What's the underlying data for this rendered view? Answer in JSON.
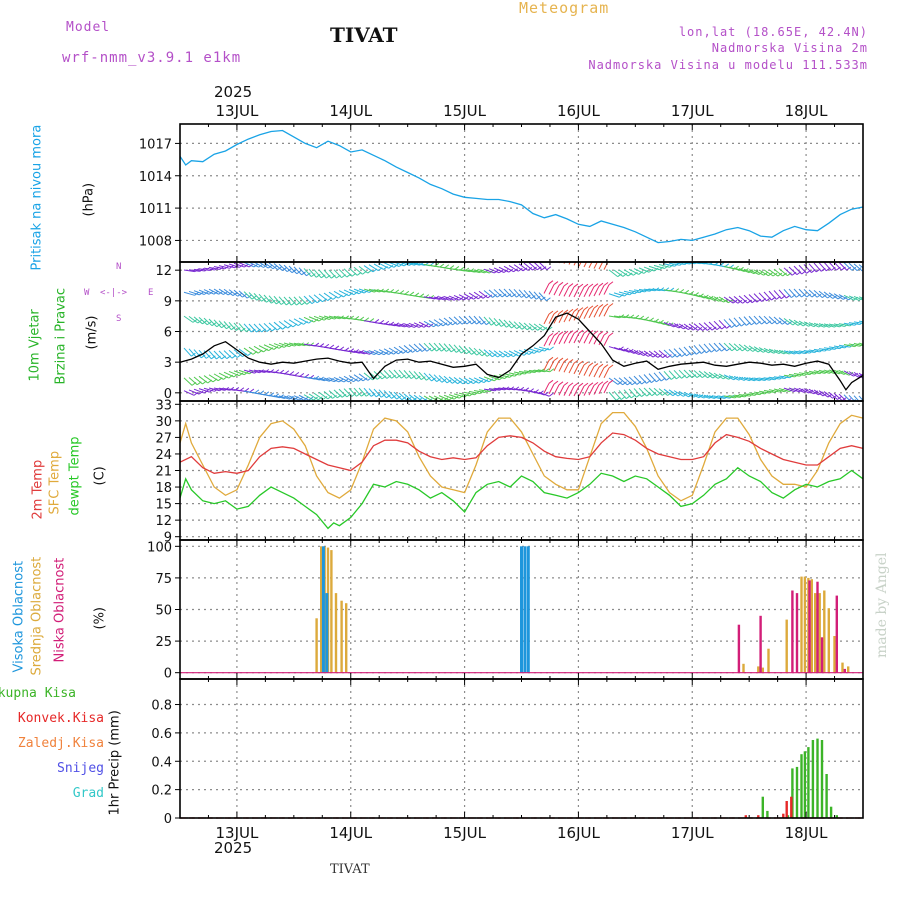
{
  "header": {
    "model_label": "Model",
    "model_name": "wrf-nmm_v3.9.1 e1km",
    "title": "TIVAT",
    "meteogram": "Meteogram",
    "lonlat": "lon,lat (18.65E, 42.4N)",
    "elevation": "Nadmorska Visina 2m",
    "model_elevation": "Nadmorska Visina u modelu 111.533m",
    "year": "2025",
    "footer_station": "TIVAT",
    "watermark": "made by Angel"
  },
  "colors": {
    "pressure": "#19a3e6",
    "wind_speed": "#000000",
    "temp2m": "#e03c3c",
    "sfc_temp": "#e0aa3c",
    "dewpt": "#28c828",
    "high_cloud": "#1e96dc",
    "mid_cloud": "#dcaa3c",
    "low_cloud": "#d21e78",
    "total_precip": "#3cb428",
    "conv_precip": "#e62828",
    "frozen_precip": "#f0823c",
    "snow": "#5050e6",
    "hail": "#32c8c8",
    "magenta_text": "#b450c8",
    "orange_text": "#e6b450"
  },
  "chart_data": [
    {
      "type": "line",
      "panel": "pressure",
      "ylabel": "Pritisak na nivou mora",
      "unit": "(hPa)",
      "ylim": [
        1006,
        1018.8
      ],
      "yticks": [
        1008,
        1011,
        1014,
        1017
      ],
      "x_day_start": 12.5,
      "x_day_end": 18.5,
      "x_ticks": [
        "13JUL",
        "14JUL",
        "15JUL",
        "16JUL",
        "17JUL",
        "18JUL"
      ],
      "series": [
        {
          "color_key": "pressure",
          "x": [
            12.5,
            12.55,
            12.6,
            12.7,
            12.8,
            12.9,
            13.0,
            13.1,
            13.2,
            13.3,
            13.4,
            13.5,
            13.6,
            13.7,
            13.8,
            13.9,
            14.0,
            14.1,
            14.2,
            14.3,
            14.4,
            14.5,
            14.6,
            14.7,
            14.8,
            14.9,
            15.0,
            15.1,
            15.2,
            15.3,
            15.4,
            15.5,
            15.6,
            15.7,
            15.8,
            15.9,
            16.0,
            16.1,
            16.2,
            16.3,
            16.4,
            16.5,
            16.6,
            16.7,
            16.8,
            16.9,
            17.0,
            17.1,
            17.2,
            17.3,
            17.4,
            17.5,
            17.6,
            17.7,
            17.8,
            17.9,
            18.0,
            18.1,
            18.2,
            18.3,
            18.4,
            18.5
          ],
          "values": [
            1015.8,
            1015.0,
            1015.4,
            1015.3,
            1016.0,
            1016.3,
            1016.9,
            1017.4,
            1017.8,
            1018.1,
            1018.2,
            1017.6,
            1017.0,
            1016.6,
            1017.2,
            1016.8,
            1016.2,
            1016.4,
            1015.9,
            1015.4,
            1014.8,
            1014.3,
            1013.8,
            1013.2,
            1012.8,
            1012.3,
            1012.0,
            1011.9,
            1011.8,
            1011.8,
            1011.6,
            1011.3,
            1010.5,
            1010.1,
            1010.4,
            1010.0,
            1009.5,
            1009.3,
            1009.8,
            1009.5,
            1009.2,
            1008.8,
            1008.3,
            1007.8,
            1007.9,
            1008.1,
            1008.0,
            1008.3,
            1008.6,
            1009.0,
            1009.2,
            1008.9,
            1008.4,
            1008.3,
            1008.9,
            1009.3,
            1009.0,
            1008.9,
            1009.6,
            1010.4,
            1010.9,
            1011.1
          ]
        }
      ]
    },
    {
      "type": "line",
      "panel": "wind",
      "ylabel_1": "10m Vjetar",
      "ylabel_2": "Brzina i Pravac",
      "unit": "(m/s)",
      "compass": {
        "n": "N",
        "s": "S",
        "e": "E",
        "w": "W"
      },
      "ylim": [
        -0.8,
        12.8
      ],
      "yticks": [
        0,
        3,
        6,
        9,
        12
      ],
      "series": [
        {
          "name": "",
          "color_key": "wind_speed",
          "x": [
            12.5,
            12.6,
            12.7,
            12.8,
            12.9,
            13.0,
            13.1,
            13.2,
            13.3,
            13.4,
            13.5,
            13.6,
            13.7,
            13.8,
            13.9,
            14.0,
            14.1,
            14.2,
            14.3,
            14.4,
            14.5,
            14.6,
            14.7,
            14.8,
            14.9,
            15.0,
            15.1,
            15.2,
            15.3,
            15.4,
            15.5,
            15.6,
            15.7,
            15.8,
            15.9,
            16.0,
            16.1,
            16.2,
            16.3,
            16.4,
            16.5,
            16.6,
            16.7,
            16.8,
            16.9,
            17.0,
            17.1,
            17.2,
            17.3,
            17.4,
            17.5,
            17.6,
            17.7,
            17.8,
            17.9,
            18.0,
            18.1,
            18.2,
            18.3,
            18.35,
            18.4,
            18.5
          ],
          "values": [
            3.0,
            3.3,
            3.8,
            4.6,
            5.0,
            4.2,
            3.4,
            3.0,
            2.8,
            3.0,
            2.9,
            3.1,
            3.3,
            3.4,
            3.1,
            2.9,
            3.0,
            1.4,
            2.6,
            3.2,
            3.3,
            3.0,
            3.1,
            2.8,
            2.5,
            2.6,
            2.8,
            1.8,
            1.5,
            2.2,
            3.8,
            4.6,
            5.6,
            7.4,
            7.8,
            7.2,
            6.0,
            4.8,
            3.2,
            2.6,
            2.9,
            3.1,
            2.3,
            2.6,
            2.8,
            2.9,
            3.0,
            2.7,
            2.6,
            2.8,
            3.0,
            2.9,
            2.7,
            2.8,
            2.6,
            2.9,
            3.1,
            2.8,
            1.2,
            0.3,
            1.0,
            1.7
          ]
        }
      ]
    },
    {
      "type": "line",
      "panel": "temperature",
      "ylabel_1": "2m Temp",
      "ylabel_2": "SFC Temp",
      "ylabel_3": "dewpt Temp",
      "unit": "(C)",
      "ylim": [
        8.4,
        33.6
      ],
      "yticks": [
        9,
        12,
        15,
        18,
        21,
        24,
        27,
        30,
        33
      ],
      "series": [
        {
          "color_key": "sfc_temp",
          "x": [
            12.5,
            12.55,
            12.6,
            12.7,
            12.8,
            12.9,
            13.0,
            13.1,
            13.2,
            13.3,
            13.4,
            13.5,
            13.6,
            13.7,
            13.8,
            13.9,
            14.0,
            14.1,
            14.2,
            14.3,
            14.4,
            14.5,
            14.6,
            14.7,
            14.8,
            14.9,
            15.0,
            15.1,
            15.2,
            15.3,
            15.4,
            15.5,
            15.6,
            15.7,
            15.8,
            15.9,
            16.0,
            16.1,
            16.2,
            16.3,
            16.4,
            16.5,
            16.6,
            16.7,
            16.8,
            16.9,
            17.0,
            17.1,
            17.2,
            17.3,
            17.4,
            17.5,
            17.6,
            17.7,
            17.8,
            17.9,
            18.0,
            18.1,
            18.2,
            18.3,
            18.4,
            18.5
          ],
          "values": [
            26.0,
            29.5,
            26.0,
            22.0,
            18.0,
            16.5,
            17.5,
            22.0,
            27.0,
            29.5,
            30.0,
            28.5,
            25.5,
            20.0,
            17.0,
            16.0,
            17.5,
            22.5,
            28.5,
            30.5,
            30.0,
            28.0,
            23.5,
            20.0,
            18.0,
            17.5,
            17.0,
            22.0,
            28.0,
            30.5,
            30.5,
            28.0,
            24.0,
            20.0,
            18.5,
            17.5,
            17.5,
            23.5,
            29.5,
            31.5,
            31.5,
            29.0,
            25.0,
            20.0,
            17.0,
            15.5,
            16.5,
            22.0,
            28.0,
            30.5,
            30.5,
            27.5,
            23.0,
            20.0,
            18.5,
            18.5,
            18.0,
            21.0,
            26.0,
            29.5,
            31.0,
            30.5
          ]
        },
        {
          "color_key": "temp2m",
          "x": [
            12.5,
            12.6,
            12.7,
            12.8,
            12.9,
            13.0,
            13.1,
            13.2,
            13.3,
            13.4,
            13.5,
            13.6,
            13.7,
            13.8,
            13.9,
            14.0,
            14.1,
            14.2,
            14.3,
            14.4,
            14.5,
            14.6,
            14.7,
            14.8,
            14.9,
            15.0,
            15.1,
            15.2,
            15.3,
            15.4,
            15.5,
            15.6,
            15.7,
            15.8,
            15.9,
            16.0,
            16.1,
            16.2,
            16.3,
            16.4,
            16.5,
            16.6,
            16.7,
            16.8,
            16.9,
            17.0,
            17.1,
            17.2,
            17.3,
            17.4,
            17.5,
            17.6,
            17.7,
            17.8,
            17.9,
            18.0,
            18.1,
            18.2,
            18.3,
            18.4,
            18.5
          ],
          "values": [
            22.5,
            23.5,
            21.5,
            20.5,
            20.8,
            20.5,
            21.0,
            23.5,
            25.0,
            25.3,
            25.0,
            24.0,
            23.0,
            22.0,
            21.5,
            21.0,
            22.5,
            25.5,
            26.5,
            26.5,
            26.0,
            24.5,
            23.5,
            23.0,
            23.3,
            23.0,
            23.3,
            25.5,
            27.0,
            27.3,
            27.0,
            26.0,
            24.5,
            23.5,
            23.2,
            23.0,
            23.5,
            26.0,
            27.8,
            27.5,
            26.5,
            25.0,
            24.0,
            23.5,
            23.0,
            23.0,
            23.5,
            26.0,
            27.5,
            27.0,
            26.3,
            25.0,
            24.0,
            23.0,
            22.5,
            22.0,
            22.0,
            23.5,
            25.0,
            25.5,
            25.0
          ]
        },
        {
          "color_key": "dewpt",
          "x": [
            12.5,
            12.55,
            12.6,
            12.7,
            12.8,
            12.9,
            13.0,
            13.1,
            13.2,
            13.3,
            13.4,
            13.5,
            13.6,
            13.7,
            13.8,
            13.85,
            13.9,
            14.0,
            14.1,
            14.2,
            14.3,
            14.4,
            14.5,
            14.6,
            14.7,
            14.8,
            14.9,
            15.0,
            15.1,
            15.2,
            15.3,
            15.4,
            15.5,
            15.6,
            15.7,
            15.8,
            15.9,
            16.0,
            16.1,
            16.2,
            16.3,
            16.4,
            16.5,
            16.6,
            16.7,
            16.8,
            16.9,
            17.0,
            17.1,
            17.2,
            17.3,
            17.4,
            17.5,
            17.6,
            17.7,
            17.8,
            17.9,
            18.0,
            18.1,
            18.2,
            18.3,
            18.4,
            18.5
          ],
          "values": [
            16.0,
            19.5,
            17.5,
            15.5,
            15.0,
            15.5,
            14.0,
            14.5,
            16.5,
            18.0,
            17.0,
            16.0,
            14.5,
            13.0,
            10.5,
            11.5,
            11.0,
            12.5,
            15.0,
            18.5,
            18.0,
            19.0,
            18.5,
            17.5,
            16.0,
            17.0,
            15.5,
            13.5,
            17.0,
            18.5,
            19.0,
            18.0,
            20.0,
            19.0,
            17.0,
            16.5,
            16.0,
            17.0,
            18.5,
            20.5,
            20.0,
            19.0,
            20.0,
            19.5,
            18.0,
            16.5,
            14.5,
            15.0,
            16.5,
            18.5,
            19.5,
            21.5,
            20.0,
            19.0,
            17.0,
            16.0,
            17.5,
            18.5,
            18.0,
            19.0,
            19.5,
            21.0,
            19.5
          ]
        }
      ]
    },
    {
      "type": "bar",
      "panel": "clouds",
      "ylabel_1": "Visoka Oblacnost",
      "ylabel_2": "Srednja Oblacnost",
      "ylabel_3": "Niska Oblacnost",
      "unit": "(%)",
      "ylim": [
        -5,
        105
      ],
      "yticks": [
        0,
        25,
        50,
        75,
        100
      ],
      "series": [
        {
          "color_key": "mid_cloud",
          "x": [
            13.7,
            13.74,
            13.77,
            13.8,
            13.83,
            13.87,
            13.92,
            13.96,
            17.45,
            17.58,
            17.62,
            17.67,
            17.83,
            17.96,
            17.99,
            18.02,
            18.05,
            18.08,
            18.12,
            18.16,
            18.2,
            18.25,
            18.32,
            18.37
          ],
          "values": [
            43,
            100,
            100,
            99,
            97,
            63,
            57,
            55,
            7,
            5,
            4,
            19,
            42,
            76,
            76,
            75,
            74,
            63,
            63,
            65,
            51,
            29,
            8,
            5
          ]
        },
        {
          "color_key": "high_cloud",
          "x": [
            13.76,
            13.79,
            15.5,
            15.53,
            15.56
          ],
          "values": [
            100,
            63,
            100,
            100,
            100
          ]
        },
        {
          "color_key": "low_cloud",
          "x": [
            17.41,
            17.6,
            17.88,
            17.92,
            18.03,
            18.1,
            18.14,
            18.27,
            18.34
          ],
          "values": [
            38,
            45,
            65,
            63,
            73,
            72,
            28,
            61,
            3
          ]
        }
      ]
    },
    {
      "type": "bar",
      "panel": "precip",
      "legend": [
        "Ukupna Kisa",
        "Konvek.Kisa",
        "Zaledj.Kisa",
        "Snijeg",
        "Grad"
      ],
      "ylabel": "1hr Precip (mm)",
      "ylim": [
        0,
        0.98
      ],
      "yticks": [
        0,
        0.2,
        0.4,
        0.6,
        0.8
      ],
      "ytick_labels": [
        "0",
        "0.2",
        "0.4",
        "0.6",
        "0.8"
      ],
      "series": [
        {
          "color_key": "total_precip",
          "x": [
            17.62,
            17.66,
            17.84,
            17.88,
            17.92,
            17.96,
            17.99,
            18.02,
            18.06,
            18.1,
            18.14,
            18.18,
            18.22,
            18.27
          ],
          "values": [
            0.15,
            0.05,
            0.02,
            0.35,
            0.36,
            0.45,
            0.47,
            0.5,
            0.55,
            0.56,
            0.55,
            0.31,
            0.08,
            0.02
          ]
        },
        {
          "color_key": "conv_precip",
          "x": [
            17.47,
            17.58,
            17.8,
            17.83,
            17.87
          ],
          "values": [
            0.02,
            0.02,
            0.03,
            0.12,
            0.15
          ]
        }
      ]
    }
  ]
}
